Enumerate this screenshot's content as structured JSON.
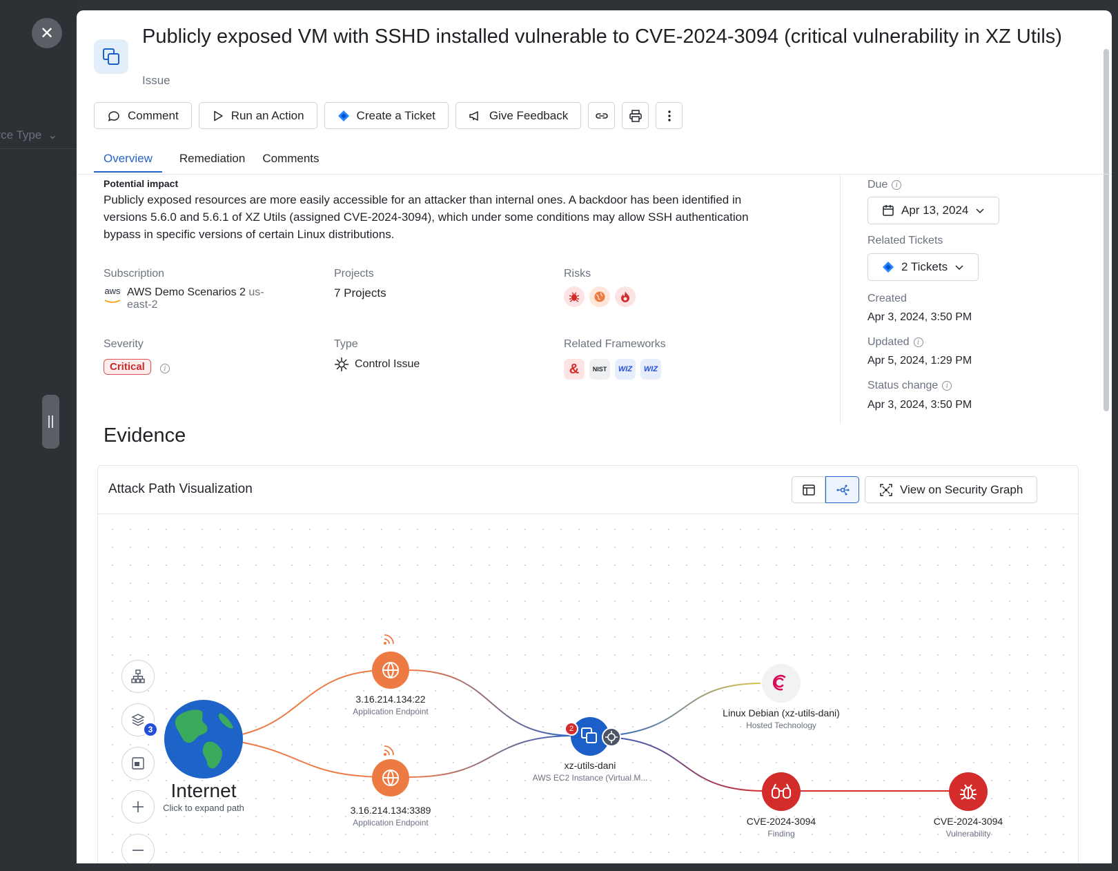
{
  "backdrop": {
    "peek_text": "urce Type"
  },
  "header": {
    "title": "Publicly exposed VM with SSHD installed vulnerable to CVE-2024-3094 (critical vulnerability in XZ Utils)",
    "subtitle": "Issue"
  },
  "toolbar": {
    "comment_label": "Comment",
    "run_action_label": "Run an Action",
    "create_ticket_label": "Create a Ticket",
    "give_feedback_label": "Give Feedback"
  },
  "tabs": [
    {
      "label": "Overview"
    },
    {
      "label": "Remediation"
    },
    {
      "label": "Comments"
    }
  ],
  "overview": {
    "impact_heading": "Potential impact",
    "impact_text": "Publicly exposed resources are more easily accessible for an attacker than internal ones. A backdoor has been identified in versions 5.6.0 and 5.6.1 of XZ Utils (assigned CVE-2024-3094), which under some conditions may allow SSH authentication bypass in specific versions of certain Linux distributions.",
    "subscription_label": "Subscription",
    "subscription_provider": "aws",
    "subscription_value": "AWS Demo Scenarios 2",
    "subscription_region": "us-east-2",
    "projects_label": "Projects",
    "projects_value": "7 Projects",
    "risks_label": "Risks",
    "severity_label": "Severity",
    "severity_value": "Critical",
    "type_label": "Type",
    "type_value": "Control Issue",
    "frameworks_label": "Related Frameworks",
    "frameworks": [
      "&",
      "NIST",
      "WIZ",
      "WIZ"
    ]
  },
  "sidebar": {
    "due_label": "Due",
    "due_value": "Apr 13, 2024",
    "tickets_label": "Related Tickets",
    "tickets_value": "2 Tickets",
    "created_label": "Created",
    "created_value": "Apr 3, 2024, 3:50 PM",
    "updated_label": "Updated",
    "updated_value": "Apr 5, 2024, 1:29 PM",
    "status_change_label": "Status change",
    "status_change_value": "Apr 3, 2024, 3:50 PM"
  },
  "evidence": {
    "heading": "Evidence",
    "card_title": "Attack Path Visualization",
    "security_graph_label": "View on Security Graph",
    "layers_badge": "3",
    "graph": {
      "internet": {
        "label": "Internet",
        "sub": "Click to expand path"
      },
      "endpoint1": {
        "label": "3.16.214.134:22",
        "sub": "Application Endpoint"
      },
      "endpoint2": {
        "label": "3.16.214.134:3389",
        "sub": "Application Endpoint"
      },
      "vm": {
        "label": "xz-utils-dani",
        "sub": "AWS EC2 Instance (Virtual M...",
        "badge": "2"
      },
      "tech": {
        "label": "Linux Debian (xz-utils-dani)",
        "sub": "Hosted Technology"
      },
      "finding": {
        "label": "CVE-2024-3094",
        "sub": "Finding"
      },
      "vuln": {
        "label": "CVE-2024-3094",
        "sub": "Vulnerability"
      }
    }
  },
  "colors": {
    "accent": "#2563cc",
    "endpoint": "#ee7a43",
    "vm": "#1d5fc9",
    "critical": "#d42b2b"
  }
}
